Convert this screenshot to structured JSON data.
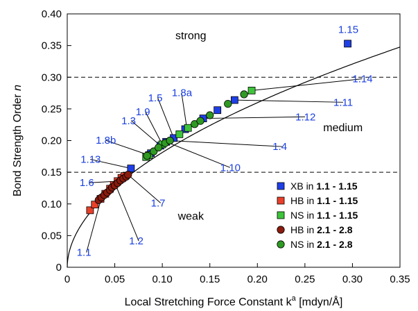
{
  "chart_data": {
    "type": "scatter",
    "xlabel_prefix": "Local Stretching Force Constant k",
    "xlabel_sup": "a",
    "xlabel_suffix": " [mdyn/Å]",
    "ylabel_prefix": "Bond Strength Order ",
    "ylabel_italic": "n",
    "xlim": [
      0,
      0.35
    ],
    "ylim": [
      0,
      0.4
    ],
    "xticks": [
      0,
      0.05,
      0.1,
      0.15,
      0.2,
      0.25,
      0.3,
      0.35
    ],
    "xtick_labels": [
      "0",
      "0.05",
      "0.10",
      "0.15",
      "0.20",
      "0.25",
      "0.30",
      "0.35"
    ],
    "yticks": [
      0,
      0.05,
      0.1,
      0.15,
      0.2,
      0.25,
      0.3,
      0.35,
      0.4
    ],
    "ytick_labels": [
      "0",
      "0.05",
      "0.10",
      "0.15",
      "0.20",
      "0.25",
      "0.30",
      "0.35",
      "0.40"
    ],
    "thresholds": [
      0.15,
      0.3
    ],
    "regions": [
      {
        "label": "strong",
        "x": 0.13,
        "y": 0.36
      },
      {
        "label": "medium",
        "x": 0.29,
        "y": 0.215
      },
      {
        "label": "weak",
        "x": 0.13,
        "y": 0.075
      }
    ],
    "curve": {
      "type": "power",
      "a": 0.6,
      "b": 0.52
    },
    "legend_position": "bottom-right",
    "series": [
      {
        "name": "XB in ",
        "bold": "1.1 - 1.15",
        "marker": "square",
        "color": "#1f3fe6",
        "points": [
          [
            0.067,
            0.156
          ],
          [
            0.088,
            0.18
          ],
          [
            0.098,
            0.192
          ],
          [
            0.104,
            0.198
          ],
          [
            0.112,
            0.204
          ],
          [
            0.124,
            0.218
          ],
          [
            0.143,
            0.235
          ],
          [
            0.158,
            0.248
          ],
          [
            0.176,
            0.264
          ],
          [
            0.295,
            0.353
          ]
        ]
      },
      {
        "name": "HB in ",
        "bold": "1.1 - 1.15",
        "marker": "square",
        "color": "#e8402a",
        "points": [
          [
            0.024,
            0.09
          ],
          [
            0.029,
            0.099
          ],
          [
            0.035,
            0.108
          ],
          [
            0.04,
            0.116
          ],
          [
            0.045,
            0.124
          ],
          [
            0.049,
            0.13
          ],
          [
            0.053,
            0.136
          ],
          [
            0.057,
            0.141
          ],
          [
            0.06,
            0.144
          ]
        ]
      },
      {
        "name": "NS in ",
        "bold": "1.1 - 1.15",
        "marker": "square",
        "color": "#3ec43a",
        "points": [
          [
            0.083,
            0.174
          ],
          [
            0.086,
            0.177
          ],
          [
            0.1,
            0.194
          ],
          [
            0.118,
            0.21
          ],
          [
            0.127,
            0.22
          ],
          [
            0.194,
            0.279
          ]
        ]
      },
      {
        "name": "HB in ",
        "bold": "2.1 - 2.8",
        "marker": "circle",
        "color": "#8b1c0e",
        "points": [
          [
            0.033,
            0.106
          ],
          [
            0.036,
            0.11
          ],
          [
            0.039,
            0.114
          ],
          [
            0.042,
            0.118
          ],
          [
            0.045,
            0.122
          ],
          [
            0.047,
            0.126
          ],
          [
            0.05,
            0.129
          ],
          [
            0.053,
            0.133
          ],
          [
            0.056,
            0.137
          ],
          [
            0.059,
            0.14
          ],
          [
            0.062,
            0.143
          ],
          [
            0.064,
            0.146
          ]
        ]
      },
      {
        "name": "NS in ",
        "bold": "2.1 - 2.8",
        "marker": "circle",
        "color": "#2f9a23",
        "points": [
          [
            0.084,
            0.176
          ],
          [
            0.091,
            0.183
          ],
          [
            0.096,
            0.189
          ],
          [
            0.103,
            0.196
          ],
          [
            0.108,
            0.2
          ],
          [
            0.134,
            0.226
          ],
          [
            0.14,
            0.231
          ],
          [
            0.15,
            0.24
          ],
          [
            0.169,
            0.258
          ],
          [
            0.186,
            0.273
          ]
        ]
      }
    ],
    "annotations": [
      {
        "text": "1.15",
        "tx": 0.285,
        "ty": 0.37,
        "px": null,
        "py": null
      },
      {
        "text": "1.8a",
        "tx": 0.11,
        "ty": 0.27,
        "px": 0.126,
        "py": 0.218
      },
      {
        "text": "1.5",
        "tx": 0.085,
        "ty": 0.262,
        "px": 0.112,
        "py": 0.204
      },
      {
        "text": "1.9",
        "tx": 0.072,
        "ty": 0.24,
        "px": 0.1,
        "py": 0.194
      },
      {
        "text": "1.3",
        "tx": 0.057,
        "ty": 0.226,
        "px": 0.098,
        "py": 0.192
      },
      {
        "text": "1.8b",
        "tx": 0.03,
        "ty": 0.195,
        "px": 0.086,
        "py": 0.177
      },
      {
        "text": "1.13",
        "tx": 0.014,
        "ty": 0.165,
        "px": 0.067,
        "py": 0.156
      },
      {
        "text": "1.6",
        "tx": 0.013,
        "ty": 0.128,
        "px": 0.055,
        "py": 0.136
      },
      {
        "text": "1.1",
        "tx": 0.01,
        "ty": 0.018,
        "px": 0.036,
        "py": 0.11
      },
      {
        "text": "1.2",
        "tx": 0.065,
        "ty": 0.036,
        "px": 0.052,
        "py": 0.126
      },
      {
        "text": "1.7",
        "tx": 0.088,
        "ty": 0.096,
        "px": 0.064,
        "py": 0.146
      },
      {
        "text": "1.10",
        "tx": 0.161,
        "ty": 0.152,
        "px": 0.104,
        "py": 0.198
      },
      {
        "text": "1.4",
        "tx": 0.216,
        "ty": 0.185,
        "px": 0.108,
        "py": 0.2
      },
      {
        "text": "1.12",
        "tx": 0.24,
        "ty": 0.232,
        "px": 0.143,
        "py": 0.235
      },
      {
        "text": "1.11",
        "tx": 0.28,
        "ty": 0.255,
        "px": 0.176,
        "py": 0.264
      },
      {
        "text": "1.14",
        "tx": 0.3,
        "ty": 0.292,
        "px": 0.194,
        "py": 0.279
      }
    ]
  }
}
